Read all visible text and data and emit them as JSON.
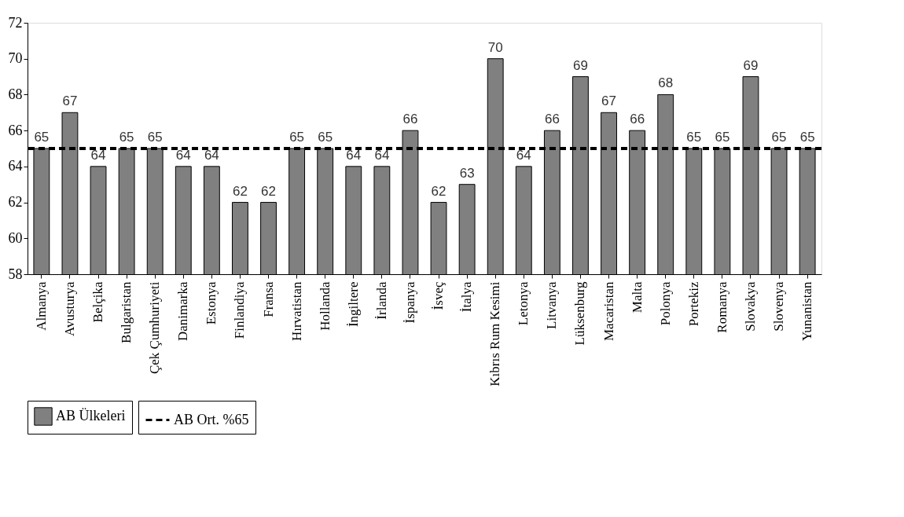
{
  "chart_data": {
    "type": "bar",
    "categories": [
      "Almanya",
      "Avusturya",
      "Belçika",
      "Bulgaristan",
      "Çek Çumhuriyeti",
      "Danimarka",
      "Estonya",
      "Finlandiya",
      "Fransa",
      "Hırvatistan",
      "Hollanda",
      "İngiltere",
      "İrlanda",
      "İspanya",
      "İsveç",
      "İtalya",
      "Kıbrıs Rum Kesimi",
      "Letonya",
      "Litvanya",
      "Lüksenburg",
      "Macaristan",
      "Malta",
      "Polonya",
      "Portekiz",
      "Romanya",
      "Slovakya",
      "Slovenya",
      "Yunanistan"
    ],
    "series": [
      {
        "name": "AB Ülkeleri",
        "color": "#808080",
        "values": [
          65,
          67,
          64,
          65,
          65,
          64,
          64,
          62,
          62,
          65,
          65,
          64,
          64,
          66,
          62,
          63,
          70,
          64,
          66,
          69,
          67,
          66,
          68,
          65,
          65,
          69,
          65,
          65
        ]
      }
    ],
    "ref_lines": [
      {
        "axis": "y",
        "value": 65,
        "label": "AB Ort. %65",
        "color": "#000000",
        "line_style": "dashed"
      }
    ],
    "ylim": [
      58,
      72
    ],
    "yticks": [
      58,
      60,
      62,
      64,
      66,
      68,
      70,
      72
    ],
    "grid": false,
    "legend": "bottom",
    "data_labels": true
  }
}
